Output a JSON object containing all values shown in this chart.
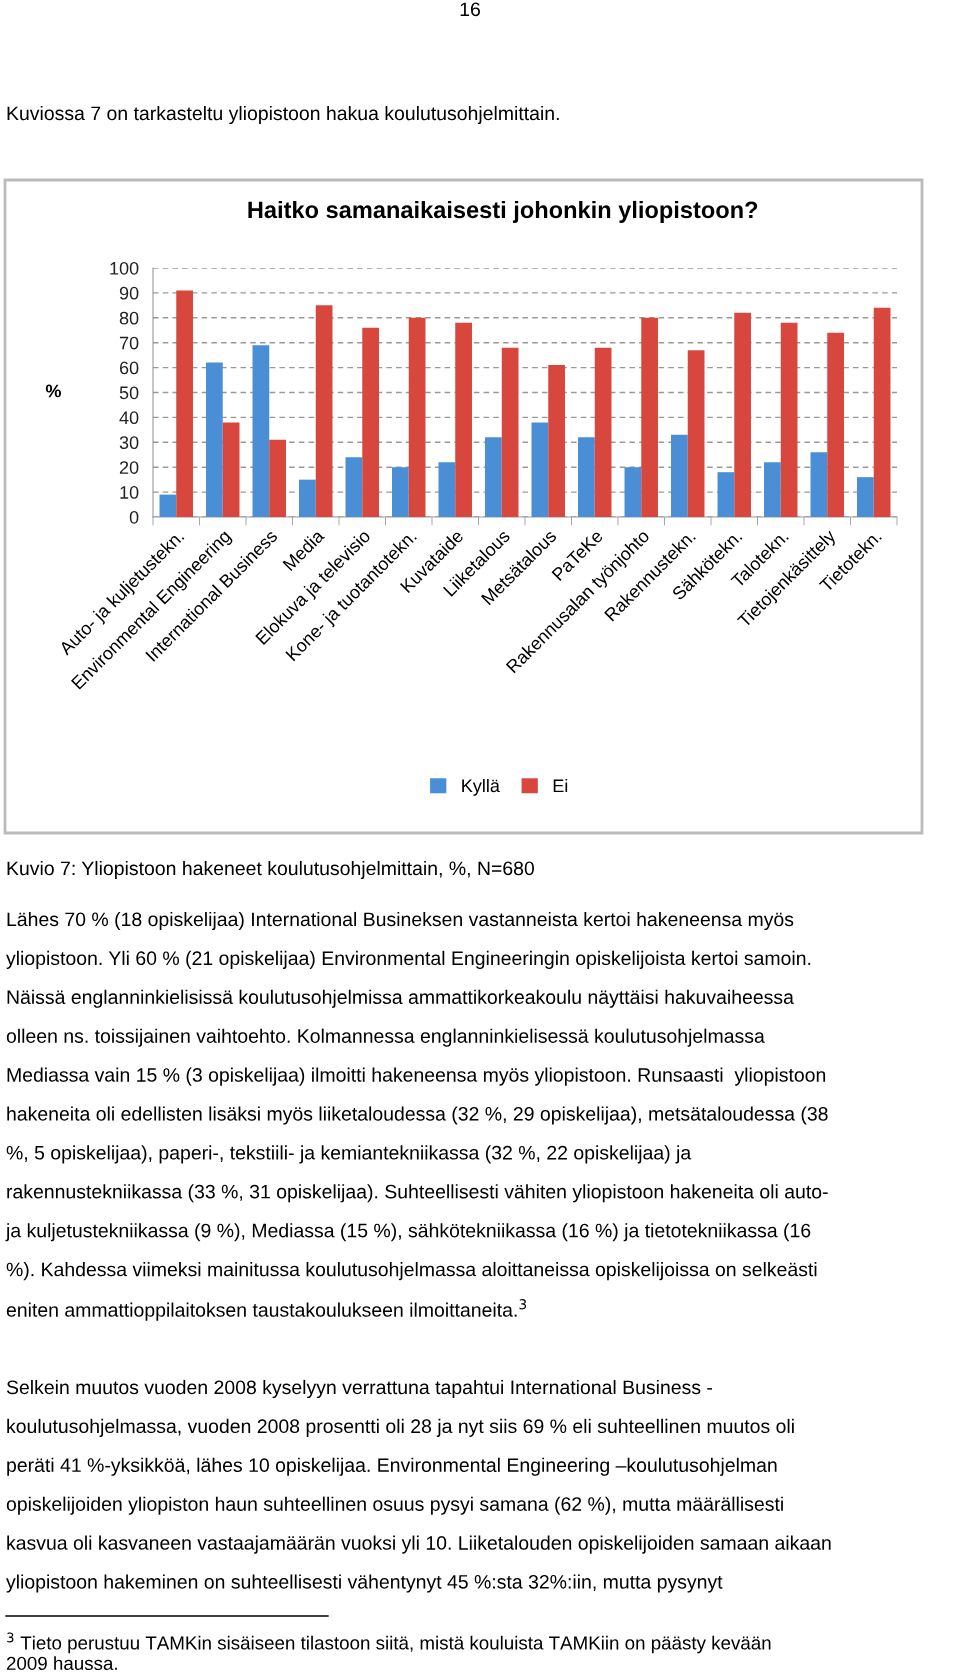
{
  "chart_data": {
    "type": "bar",
    "title": "Haitko samanaikaisesti johonkin yliopistoon?",
    "ylabel": "%",
    "categories": [
      "Auto- ja kuljetustekn.",
      "Environmental Engineering",
      "International Business",
      "Media",
      "Elokuva ja televisio",
      "Kone- ja tuotantotekn.",
      "Kuvataide",
      "Liiketalous",
      "Metsätalous",
      "PaTeKe",
      "Rakennusalan työnjohto",
      "Rakennustekn.",
      "Sähkötekn.",
      "Talotekn.",
      "Tietojenkäsittely",
      "Tietotekn."
    ],
    "series": [
      {
        "name": "Kyllä",
        "color": "#4a8fd6",
        "values": [
          9,
          62,
          69,
          15,
          24,
          20,
          22,
          32,
          38,
          32,
          20,
          33,
          18,
          22,
          26,
          16
        ]
      },
      {
        "name": "Ei",
        "color": "#d8473d",
        "values": [
          91,
          38,
          31,
          85,
          76,
          80,
          78,
          68,
          61,
          68,
          80,
          67,
          82,
          78,
          74,
          84
        ]
      }
    ],
    "ylim": [
      0,
      100
    ],
    "yticks": [
      0,
      10,
      20,
      30,
      40,
      50,
      60,
      70,
      80,
      90,
      100
    ],
    "grid": "y",
    "legend": "bottom",
    "annotations": [
      "16",
      "Kuviossa 7 on tarkasteltu yliopistoon hakua koulutusohjelmittain.",
      "Kuvio 7: Yliopistoon hakeneet koulutusohjelmittain, %, N=680",
      "Lähes 70 % (18 opiskelijaa) International Busineksen vastanneista kertoi hakeneensa myös\nyliopistoon. Yli 60 % (21 opiskelijaa) Environmental Engineeringin opiskelijoista kertoi samoin.\nNäissä englanninkielisissä koulutusohjelmissa ammattikorkeakoulu näyttäisi hakuvaiheessa\nolleen ns. toissijainen vaihtoehto. Kolmannessa englanninkielisessä koulutusohjelmassa\nMediassa vain 15 % (3 opiskelijaa) ilmoitti hakeneensa myös yliopistoon. Runsaasti  yliopistoon\nhakeneita oli edellisten lisäksi myös liiketaloudessa (32 %, 29 opiskelijaa), metsätaloudessa (38\n%, 5 opiskelijaa), paperi-, tekstiili- ja kemiantekniikassa (32 %, 22 opiskelijaa) ja\nrakennustekniikassa (33 %, 31 opiskelijaa). Suhteellisesti vähiten yliopistoon hakeneita oli auto-\nja kuljetustekniikassa (9 %), Mediassa (15 %), sähkötekniikassa (16 %) ja tietotekniikassa (16\n%). Kahdessa viimeksi mainitussa koulutusohjelmassa aloittaneissa opiskelijoissa on selkeästi\neniten ammattioppilaitoksen taustakoulukseen ilmoittaneita.$^{3}$",
      "Selkein muutos vuoden 2008 kyselyyn verrattuna tapahtui International Business -\nkoulutusohjelmassa, vuoden 2008 prosentti oli 28 ja nyt siis 69 % eli suhteellinen muutos oli\nperäti 41 %-yksikköä, lähes 10 opiskelijaa. Environmental Engineering –koulutusohjelman\nopiskelijoiden yliopiston haun suhteellinen osuus pysyi samana (62 %), mutta määrällisesti\nkasvua oli kasvaneen vastaajamäärän vuoksi yli 10. Liiketalouden opiskelijoiden samaan aikaan\nyliopistoon hakeminen on suhteellisesti vähentynyt 45 %:sta 32%:iin, mutta pysynyt",
      "$^{3}$ Tieto perustuu TAMKin sisäiseen tilastoon siitä, mistä kouluista TAMKiin on päästy kevään\n2009 haussa."
    ]
  }
}
